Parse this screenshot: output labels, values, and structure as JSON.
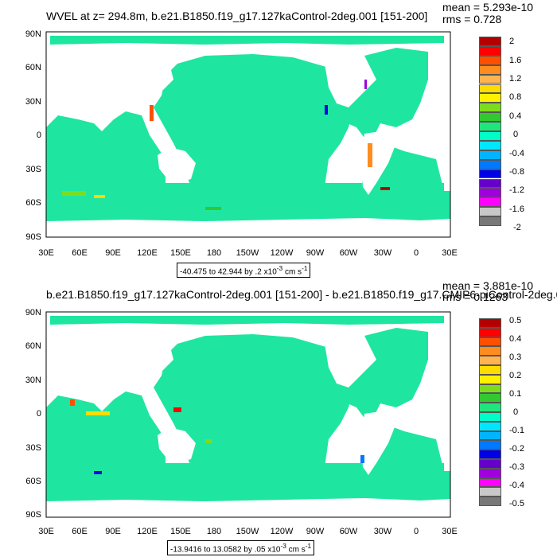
{
  "panels": [
    {
      "title": "WVEL at z= 294.8m, b.e21.B1850.f19_g17.127kaControl-2deg.001 [151-200]",
      "mean": "mean = 5.293e-10",
      "rms": "rms = 0.728",
      "range_note": "-40.475 to 42.944 by .2 x10",
      "range_exp": "-3",
      "range_units": " cm s",
      "range_units_exp": "-1",
      "colorbar_labels": [
        "2",
        "1.6",
        "1.2",
        "0.8",
        "0.4",
        "0",
        "-0.4",
        "-0.8",
        "-1.2",
        "-1.6",
        "-2"
      ],
      "colorbar_colors": [
        "#b40000",
        "#ff0000",
        "#ff5000",
        "#ff8c1e",
        "#ffb450",
        "#ffdc00",
        "#fff000",
        "#7ddc1e",
        "#32c832",
        "#1ee67d",
        "#00ffc8",
        "#00e6ff",
        "#00b4ff",
        "#0078ff",
        "#0000e6",
        "#6400c8",
        "#a000dc",
        "#ff00ff",
        "#c8c8c8",
        "#787878"
      ]
    },
    {
      "title": "b.e21.B1850.f19_g17.127kaControl-2deg.001 [151-200] - b.e21.B1850.f19_g17.CMIP6-piControl-2deg.0",
      "mean": "mean = 3.881e-10",
      "rms": "rms = 0.1263",
      "range_note": "-13.9416 to 13.0582 by .05 x10",
      "range_exp": "-3",
      "range_units": " cm s",
      "range_units_exp": "-1",
      "colorbar_labels": [
        "0.5",
        "0.4",
        "0.3",
        "0.2",
        "0.1",
        "0",
        "-0.1",
        "-0.2",
        "-0.3",
        "-0.4",
        "-0.5"
      ],
      "colorbar_colors": [
        "#b40000",
        "#ff0000",
        "#ff5000",
        "#ff8c1e",
        "#ffb450",
        "#ffdc00",
        "#fff000",
        "#7ddc1e",
        "#32c832",
        "#1ee67d",
        "#00ffc8",
        "#00e6ff",
        "#00b4ff",
        "#0078ff",
        "#0000e6",
        "#6400c8",
        "#a000dc",
        "#ff00ff",
        "#c8c8c8",
        "#787878"
      ]
    }
  ],
  "lat_labels": [
    "90N",
    "60N",
    "30N",
    "0",
    "30S",
    "60S",
    "90S"
  ],
  "lon_labels": [
    "30E",
    "60E",
    "90E",
    "120E",
    "150E",
    "180",
    "150W",
    "120W",
    "90W",
    "60W",
    "30W",
    "0",
    "30E"
  ],
  "colors": {
    "ocean": "#1ee6a0",
    "ocean_light": "#32dc8c",
    "land": "#ffffff"
  }
}
